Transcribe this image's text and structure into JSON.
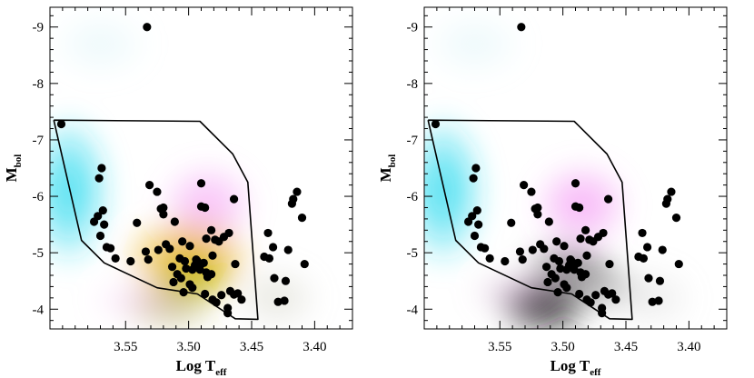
{
  "chart_data": [
    {
      "type": "scatter",
      "panel": "left",
      "xlabel": "Log T",
      "xlabel_sub": "eff",
      "ylabel": "M",
      "ylabel_sub": "bol",
      "xlim": [
        3.61,
        3.37
      ],
      "ylim": [
        -3.65,
        -9.35
      ],
      "xticks": [
        3.55,
        3.5,
        3.45,
        3.4
      ],
      "xtick_labels": [
        "3.55",
        "3.50",
        "3.45",
        "3.40"
      ],
      "yticks": [
        -4,
        -5,
        -6,
        -7,
        -8,
        -9
      ],
      "ytick_labels": [
        "-4",
        "-5",
        "-6",
        "-7",
        "-8",
        "-9"
      ],
      "density_blobs": [
        {
          "x": 3.595,
          "y": -6.1,
          "rx": 0.035,
          "ry": 1.4,
          "color": "#22d8ee",
          "alpha": 0.85
        },
        {
          "x": 3.5,
          "y": -4.9,
          "rx": 0.055,
          "ry": 0.85,
          "color": "#e8a40c",
          "alpha": 0.85
        },
        {
          "x": 3.497,
          "y": -4.55,
          "rx": 0.035,
          "ry": 0.5,
          "color": "#b8b800",
          "alpha": 0.8
        },
        {
          "x": 3.515,
          "y": -4.05,
          "rx": 0.04,
          "ry": 0.5,
          "color": "#9c9a2c",
          "alpha": 0.55
        },
        {
          "x": 3.485,
          "y": -5.85,
          "rx": 0.04,
          "ry": 0.8,
          "color": "#f078f0",
          "alpha": 0.5
        },
        {
          "x": 3.535,
          "y": -4.15,
          "rx": 0.045,
          "ry": 0.45,
          "color": "#f2b8f0",
          "alpha": 0.4
        },
        {
          "x": 3.43,
          "y": -4.2,
          "rx": 0.035,
          "ry": 0.6,
          "color": "#c8c8b8",
          "alpha": 0.45
        },
        {
          "x": 3.57,
          "y": -8.7,
          "rx": 0.04,
          "ry": 0.6,
          "color": "#c8eef4",
          "alpha": 0.35
        }
      ],
      "boundary": {
        "x": [
          3.607,
          3.491,
          3.465,
          3.453,
          3.445,
          3.463,
          3.493,
          3.525,
          3.567,
          3.585,
          3.607
        ],
        "y": [
          -7.35,
          -7.33,
          -6.75,
          -6.25,
          -3.82,
          -3.83,
          -4.27,
          -4.38,
          -4.82,
          -5.22,
          -7.35
        ]
      },
      "points": {
        "x": [
          3.601,
          3.533,
          3.569,
          3.571,
          3.568,
          3.572,
          3.575,
          3.567,
          3.57,
          3.562,
          3.565,
          3.558,
          3.546,
          3.532,
          3.534,
          3.541,
          3.531,
          3.525,
          3.52,
          3.511,
          3.515,
          3.503,
          3.507,
          3.499,
          3.488,
          3.491,
          3.481,
          3.476,
          3.479,
          3.472,
          3.468,
          3.485,
          3.482,
          3.495,
          3.49,
          3.493,
          3.497,
          3.502,
          3.509,
          3.506,
          3.512,
          3.499,
          3.497,
          3.504,
          3.487,
          3.481,
          3.478,
          3.469,
          3.469,
          3.474,
          3.464,
          3.458,
          3.461,
          3.467,
          3.49,
          3.486,
          3.482,
          3.487,
          3.49,
          3.486,
          3.494,
          3.513,
          3.505,
          3.524,
          3.518,
          3.52,
          3.522,
          3.464,
          3.463,
          3.437,
          3.433,
          3.44,
          3.436,
          3.432,
          3.429,
          3.424,
          3.423,
          3.421,
          3.418,
          3.417,
          3.414,
          3.41,
          3.408
        ],
        "y": [
          -7.28,
          -9.0,
          -6.5,
          -6.32,
          -5.75,
          -5.65,
          -5.55,
          -5.5,
          -5.3,
          -5.08,
          -5.1,
          -4.9,
          -4.85,
          -4.88,
          -5.02,
          -5.53,
          -6.2,
          -6.08,
          -5.8,
          -5.55,
          -5.07,
          -4.85,
          -4.9,
          -5.12,
          -4.82,
          -4.7,
          -4.95,
          -5.2,
          -5.23,
          -5.28,
          -5.35,
          -4.57,
          -4.62,
          -4.78,
          -4.8,
          -4.85,
          -4.7,
          -4.72,
          -4.62,
          -4.55,
          -4.48,
          -4.44,
          -4.38,
          -4.3,
          -4.27,
          -4.17,
          -4.12,
          -4.02,
          -3.93,
          -4.25,
          -4.26,
          -4.17,
          -4.28,
          -4.32,
          -6.23,
          -5.25,
          -5.4,
          -5.8,
          -5.82,
          -4.65,
          -4.88,
          -4.75,
          -5.2,
          -5.05,
          -5.15,
          -5.68,
          -5.78,
          -5.95,
          -4.8,
          -5.35,
          -5.1,
          -4.93,
          -4.9,
          -4.55,
          -4.13,
          -4.15,
          -4.5,
          -5.05,
          -5.87,
          -5.95,
          -6.08,
          -5.62,
          -4.8
        ]
      }
    },
    {
      "type": "scatter",
      "panel": "right",
      "xlabel": "Log T",
      "xlabel_sub": "eff",
      "ylabel": "M",
      "ylabel_sub": "bol",
      "xlim": [
        3.61,
        3.37
      ],
      "ylim": [
        -3.65,
        -9.35
      ],
      "xticks": [
        3.55,
        3.5,
        3.45,
        3.4
      ],
      "xtick_labels": [
        "3.55",
        "3.50",
        "3.45",
        "3.40"
      ],
      "yticks": [
        -4,
        -5,
        -6,
        -7,
        -8,
        -9
      ],
      "ytick_labels": [
        "-4",
        "-5",
        "-6",
        "-7",
        "-8",
        "-9"
      ],
      "density_blobs": [
        {
          "x": 3.595,
          "y": -6.1,
          "rx": 0.035,
          "ry": 1.4,
          "color": "#22d8ee",
          "alpha": 0.85
        },
        {
          "x": 3.515,
          "y": -4.05,
          "rx": 0.04,
          "ry": 0.55,
          "color": "#000000",
          "alpha": 0.92
        },
        {
          "x": 3.495,
          "y": -4.75,
          "rx": 0.04,
          "ry": 0.55,
          "color": "#2a1a2a",
          "alpha": 0.55
        },
        {
          "x": 3.485,
          "y": -5.85,
          "rx": 0.04,
          "ry": 0.8,
          "color": "#f078f0",
          "alpha": 0.6
        },
        {
          "x": 3.47,
          "y": -4.4,
          "rx": 0.035,
          "ry": 0.5,
          "color": "#6a6a6a",
          "alpha": 0.5
        },
        {
          "x": 3.535,
          "y": -4.3,
          "rx": 0.04,
          "ry": 0.45,
          "color": "#c49ac4",
          "alpha": 0.45
        },
        {
          "x": 3.43,
          "y": -4.2,
          "rx": 0.035,
          "ry": 0.6,
          "color": "#c8c8c8",
          "alpha": 0.35
        },
        {
          "x": 3.57,
          "y": -8.7,
          "rx": 0.04,
          "ry": 0.6,
          "color": "#c8eef4",
          "alpha": 0.35
        }
      ],
      "boundary": {
        "x": [
          3.607,
          3.491,
          3.465,
          3.453,
          3.445,
          3.463,
          3.493,
          3.525,
          3.567,
          3.585,
          3.607
        ],
        "y": [
          -7.35,
          -7.33,
          -6.75,
          -6.25,
          -3.82,
          -3.83,
          -4.27,
          -4.38,
          -4.82,
          -5.22,
          -7.35
        ]
      },
      "points": {
        "x": [
          3.601,
          3.533,
          3.569,
          3.571,
          3.568,
          3.572,
          3.575,
          3.567,
          3.57,
          3.562,
          3.565,
          3.558,
          3.546,
          3.532,
          3.534,
          3.541,
          3.531,
          3.525,
          3.52,
          3.511,
          3.515,
          3.503,
          3.507,
          3.499,
          3.488,
          3.491,
          3.481,
          3.476,
          3.479,
          3.472,
          3.468,
          3.485,
          3.482,
          3.495,
          3.49,
          3.493,
          3.497,
          3.502,
          3.509,
          3.506,
          3.512,
          3.499,
          3.497,
          3.504,
          3.487,
          3.481,
          3.478,
          3.469,
          3.469,
          3.474,
          3.464,
          3.458,
          3.461,
          3.467,
          3.49,
          3.486,
          3.482,
          3.487,
          3.49,
          3.486,
          3.494,
          3.513,
          3.505,
          3.524,
          3.518,
          3.52,
          3.522,
          3.464,
          3.463,
          3.437,
          3.433,
          3.44,
          3.436,
          3.432,
          3.429,
          3.424,
          3.423,
          3.421,
          3.418,
          3.417,
          3.414,
          3.41,
          3.408
        ],
        "y": [
          -7.28,
          -9.0,
          -6.5,
          -6.32,
          -5.75,
          -5.65,
          -5.55,
          -5.5,
          -5.3,
          -5.08,
          -5.1,
          -4.9,
          -4.85,
          -4.88,
          -5.02,
          -5.53,
          -6.2,
          -6.08,
          -5.8,
          -5.55,
          -5.07,
          -4.85,
          -4.9,
          -5.12,
          -4.82,
          -4.7,
          -4.95,
          -5.2,
          -5.23,
          -5.28,
          -5.35,
          -4.57,
          -4.62,
          -4.78,
          -4.8,
          -4.85,
          -4.7,
          -4.72,
          -4.62,
          -4.55,
          -4.48,
          -4.44,
          -4.38,
          -4.3,
          -4.27,
          -4.17,
          -4.12,
          -4.02,
          -3.93,
          -4.25,
          -4.26,
          -4.17,
          -4.28,
          -4.32,
          -6.23,
          -5.25,
          -5.4,
          -5.8,
          -5.82,
          -4.65,
          -4.88,
          -4.75,
          -5.2,
          -5.05,
          -5.15,
          -5.68,
          -5.78,
          -5.95,
          -4.8,
          -5.35,
          -5.1,
          -4.93,
          -4.9,
          -4.55,
          -4.13,
          -4.15,
          -4.5,
          -5.05,
          -5.87,
          -5.95,
          -6.08,
          -5.62,
          -4.8
        ]
      }
    }
  ]
}
